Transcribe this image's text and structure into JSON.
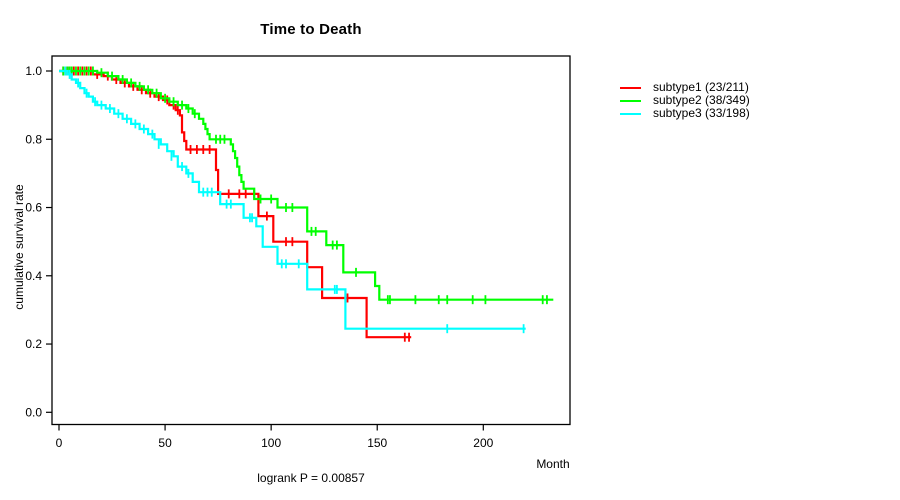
{
  "figure": {
    "title": "Time to Death",
    "x_axis_title": "Month",
    "y_axis_title": "cumulative survival rate",
    "annotation": "logrank P = 0.00857",
    "background_color": "#ffffff",
    "axis_color": "#000000",
    "text_color": "#000000"
  },
  "chart_data": {
    "type": "line",
    "subtype": "kaplan-meier-step-curves",
    "title": "Time to Death",
    "xlabel": "Month",
    "ylabel": "cumulative survival rate",
    "annotation": "logrank P = 0.00857",
    "xlim": [
      0,
      241
    ],
    "ylim": [
      0.0,
      1.0
    ],
    "xticks": [
      0,
      50,
      100,
      150,
      200
    ],
    "yticks": [
      0.0,
      0.2,
      0.4,
      0.6,
      0.8,
      1.0
    ],
    "grid": false,
    "box": true,
    "legend_position": "outside-right",
    "series": [
      {
        "name": "subtype1 (23/211)",
        "color": "#ff0000",
        "end_time": 166,
        "steps": [
          [
            0,
            1.0
          ],
          [
            16,
            0.99
          ],
          [
            21,
            0.985
          ],
          [
            25,
            0.975
          ],
          [
            29,
            0.965
          ],
          [
            33,
            0.955
          ],
          [
            37,
            0.945
          ],
          [
            41,
            0.935
          ],
          [
            45,
            0.925
          ],
          [
            49,
            0.915
          ],
          [
            52,
            0.9
          ],
          [
            55,
            0.885
          ],
          [
            57,
            0.87
          ],
          [
            58,
            0.82
          ],
          [
            59,
            0.795
          ],
          [
            60,
            0.77
          ],
          [
            74,
            0.71
          ],
          [
            75,
            0.64
          ],
          [
            94,
            0.575
          ],
          [
            101,
            0.5
          ],
          [
            117,
            0.425
          ],
          [
            124,
            0.335
          ],
          [
            145,
            0.22
          ]
        ],
        "censors": [
          [
            2,
            1.0
          ],
          [
            3,
            1.0
          ],
          [
            4,
            1.0
          ],
          [
            5,
            1.0
          ],
          [
            6,
            1.0
          ],
          [
            7,
            1.0
          ],
          [
            9,
            1.0
          ],
          [
            11,
            1.0
          ],
          [
            13,
            1.0
          ],
          [
            15,
            1.0
          ],
          [
            18,
            0.99
          ],
          [
            23,
            0.985
          ],
          [
            27,
            0.975
          ],
          [
            31,
            0.965
          ],
          [
            35,
            0.955
          ],
          [
            39,
            0.945
          ],
          [
            43,
            0.935
          ],
          [
            47,
            0.925
          ],
          [
            51,
            0.915
          ],
          [
            54,
            0.9
          ],
          [
            56,
            0.885
          ],
          [
            62,
            0.77
          ],
          [
            65,
            0.77
          ],
          [
            68,
            0.77
          ],
          [
            71,
            0.77
          ],
          [
            80,
            0.64
          ],
          [
            85,
            0.64
          ],
          [
            88,
            0.64
          ],
          [
            92,
            0.64
          ],
          [
            98,
            0.575
          ],
          [
            107,
            0.5
          ],
          [
            110,
            0.5
          ],
          [
            136,
            0.335
          ],
          [
            163,
            0.22
          ],
          [
            165,
            0.22
          ]
        ]
      },
      {
        "name": "subtype2 (38/349)",
        "color": "#00ff00",
        "end_time": 233,
        "steps": [
          [
            0,
            1.0
          ],
          [
            18,
            0.995
          ],
          [
            23,
            0.985
          ],
          [
            28,
            0.975
          ],
          [
            32,
            0.965
          ],
          [
            36,
            0.955
          ],
          [
            40,
            0.945
          ],
          [
            44,
            0.935
          ],
          [
            48,
            0.92
          ],
          [
            52,
            0.91
          ],
          [
            56,
            0.9
          ],
          [
            60,
            0.89
          ],
          [
            63,
            0.875
          ],
          [
            66,
            0.86
          ],
          [
            68,
            0.845
          ],
          [
            69,
            0.83
          ],
          [
            70,
            0.815
          ],
          [
            71,
            0.8
          ],
          [
            81,
            0.785
          ],
          [
            82,
            0.765
          ],
          [
            83,
            0.745
          ],
          [
            84,
            0.72
          ],
          [
            85,
            0.695
          ],
          [
            86,
            0.675
          ],
          [
            87,
            0.655
          ],
          [
            92,
            0.625
          ],
          [
            103,
            0.6
          ],
          [
            117,
            0.53
          ],
          [
            126,
            0.49
          ],
          [
            134,
            0.41
          ],
          [
            149,
            0.37
          ],
          [
            151,
            0.33
          ]
        ],
        "censors": [
          [
            2,
            1.0
          ],
          [
            4,
            1.0
          ],
          [
            5,
            1.0
          ],
          [
            6,
            1.0
          ],
          [
            8,
            1.0
          ],
          [
            10,
            1.0
          ],
          [
            12,
            1.0
          ],
          [
            14,
            1.0
          ],
          [
            16,
            1.0
          ],
          [
            20,
            0.995
          ],
          [
            25,
            0.985
          ],
          [
            30,
            0.975
          ],
          [
            34,
            0.965
          ],
          [
            38,
            0.955
          ],
          [
            42,
            0.945
          ],
          [
            46,
            0.935
          ],
          [
            50,
            0.92
          ],
          [
            54,
            0.91
          ],
          [
            58,
            0.9
          ],
          [
            61,
            0.89
          ],
          [
            64,
            0.875
          ],
          [
            74,
            0.8
          ],
          [
            76,
            0.8
          ],
          [
            78,
            0.8
          ],
          [
            95,
            0.625
          ],
          [
            100,
            0.625
          ],
          [
            107,
            0.6
          ],
          [
            110,
            0.6
          ],
          [
            119,
            0.53
          ],
          [
            121,
            0.53
          ],
          [
            129,
            0.49
          ],
          [
            131,
            0.49
          ],
          [
            140,
            0.41
          ],
          [
            155,
            0.33
          ],
          [
            156,
            0.33
          ],
          [
            168,
            0.33
          ],
          [
            179,
            0.33
          ],
          [
            183,
            0.33
          ],
          [
            195,
            0.33
          ],
          [
            201,
            0.33
          ],
          [
            228,
            0.33
          ],
          [
            230,
            0.33
          ]
        ]
      },
      {
        "name": "subtype3 (33/198)",
        "color": "#00ffff",
        "end_time": 220,
        "steps": [
          [
            0,
            1.0
          ],
          [
            4,
            0.99
          ],
          [
            6,
            0.975
          ],
          [
            8,
            0.965
          ],
          [
            10,
            0.95
          ],
          [
            12,
            0.935
          ],
          [
            14,
            0.925
          ],
          [
            16,
            0.91
          ],
          [
            18,
            0.9
          ],
          [
            22,
            0.89
          ],
          [
            26,
            0.875
          ],
          [
            30,
            0.86
          ],
          [
            34,
            0.845
          ],
          [
            38,
            0.83
          ],
          [
            42,
            0.815
          ],
          [
            45,
            0.8
          ],
          [
            48,
            0.785
          ],
          [
            51,
            0.765
          ],
          [
            54,
            0.75
          ],
          [
            56,
            0.72
          ],
          [
            60,
            0.7
          ],
          [
            63,
            0.675
          ],
          [
            66,
            0.645
          ],
          [
            76,
            0.61
          ],
          [
            87,
            0.57
          ],
          [
            93,
            0.545
          ],
          [
            96,
            0.485
          ],
          [
            103,
            0.435
          ],
          [
            117,
            0.36
          ],
          [
            135,
            0.245
          ]
        ],
        "censors": [
          [
            3,
            1.0
          ],
          [
            5,
            0.99
          ],
          [
            9,
            0.965
          ],
          [
            13,
            0.935
          ],
          [
            17,
            0.91
          ],
          [
            20,
            0.9
          ],
          [
            24,
            0.89
          ],
          [
            28,
            0.875
          ],
          [
            32,
            0.86
          ],
          [
            36,
            0.845
          ],
          [
            40,
            0.83
          ],
          [
            44,
            0.815
          ],
          [
            47,
            0.785
          ],
          [
            53,
            0.75
          ],
          [
            58,
            0.72
          ],
          [
            61,
            0.7
          ],
          [
            68,
            0.645
          ],
          [
            70,
            0.645
          ],
          [
            72,
            0.645
          ],
          [
            79,
            0.61
          ],
          [
            81,
            0.61
          ],
          [
            90,
            0.57
          ],
          [
            91,
            0.57
          ],
          [
            105,
            0.435
          ],
          [
            107,
            0.435
          ],
          [
            113,
            0.435
          ],
          [
            130,
            0.36
          ],
          [
            131,
            0.36
          ],
          [
            183,
            0.245
          ],
          [
            219,
            0.245
          ]
        ]
      }
    ]
  }
}
